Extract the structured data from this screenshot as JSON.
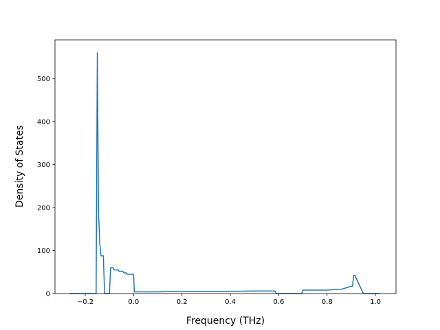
{
  "chart_data": {
    "type": "line",
    "title": "",
    "xlabel": "Frequency (THz)",
    "ylabel": "Density of States",
    "xlim": [
      -0.325,
      1.085
    ],
    "ylim": [
      0,
      590
    ],
    "xticks": [
      -0.2,
      0.0,
      0.2,
      0.4,
      0.6,
      0.8,
      1.0
    ],
    "xtick_labels": [
      "−0.2",
      "0.0",
      "0.2",
      "0.4",
      "0.6",
      "0.8",
      "1.0"
    ],
    "yticks": [
      0,
      100,
      200,
      300,
      400,
      500
    ],
    "ytick_labels": [
      "0",
      "100",
      "200",
      "300",
      "400",
      "500"
    ],
    "grid": false,
    "legend": "none",
    "series": [
      {
        "color": "#1f77b4",
        "x": [
          -0.265,
          -0.16,
          -0.155,
          -0.15,
          -0.145,
          -0.14,
          -0.135,
          -0.125,
          -0.12,
          -0.115,
          -0.105,
          -0.1,
          -0.095,
          -0.09,
          -0.085,
          -0.08,
          -0.07,
          -0.065,
          -0.06,
          -0.05,
          -0.045,
          -0.04,
          -0.03,
          -0.025,
          -0.015,
          -0.005,
          0.0,
          0.003,
          0.1,
          0.2,
          0.3,
          0.4,
          0.5,
          0.585,
          0.59,
          0.6,
          0.695,
          0.7,
          0.8,
          0.84,
          0.86,
          0.9,
          0.905,
          0.91,
          0.915,
          0.95,
          1.02
        ],
        "y": [
          0,
          0,
          0,
          560,
          190,
          118,
          88,
          88,
          0,
          0,
          0,
          0,
          60,
          60,
          60,
          55,
          55,
          55,
          52,
          52,
          52,
          48,
          48,
          45,
          45,
          45,
          45,
          4,
          4,
          5,
          5,
          5,
          6,
          6,
          0,
          0,
          0,
          8,
          8,
          10,
          10,
          17,
          17,
          42,
          42,
          0,
          0
        ]
      }
    ]
  }
}
